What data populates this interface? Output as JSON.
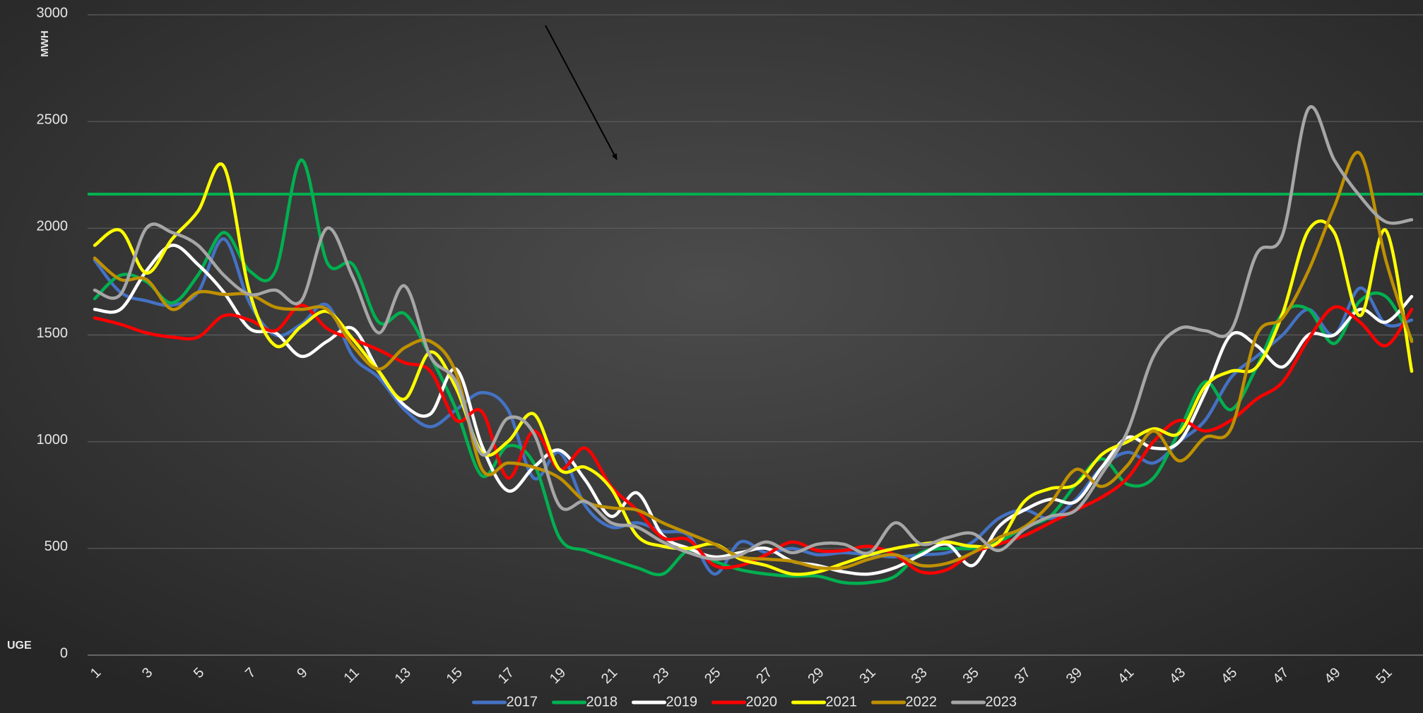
{
  "chart_data": {
    "type": "line",
    "y_label": "MWH",
    "x_label": "UGE",
    "categories": [
      "1",
      null,
      "3",
      null,
      "5",
      null,
      "7",
      null,
      "9",
      null,
      "11",
      null,
      "13",
      null,
      "15",
      null,
      "17",
      null,
      "19",
      null,
      "21",
      null,
      "23",
      null,
      "25",
      null,
      "27",
      null,
      "29",
      null,
      "31",
      null,
      "33",
      null,
      "35",
      null,
      "37",
      null,
      "39",
      null,
      "41",
      null,
      "43",
      null,
      "45",
      null,
      "47",
      null,
      "49",
      null,
      "51",
      null
    ],
    "ylim": [
      0,
      3000
    ],
    "yticks": [
      0,
      500,
      1000,
      1500,
      2000,
      2500,
      3000
    ],
    "grid": true,
    "smooth": true,
    "legend": "bottom",
    "reference_line": {
      "value": 2160,
      "color": "#00b050"
    },
    "series": [
      {
        "name": "2017",
        "color": "#4472c4",
        "values": [
          1850,
          1700,
          1660,
          1640,
          1700,
          1950,
          1650,
          1500,
          1550,
          1640,
          1400,
          1300,
          1150,
          1070,
          1150,
          1230,
          1150,
          830,
          950,
          700,
          600,
          620,
          580,
          560,
          380,
          530,
          480,
          500,
          470,
          480,
          470,
          460,
          470,
          480,
          530,
          640,
          680,
          640,
          730,
          880,
          950,
          900,
          1000,
          1100,
          1300,
          1400,
          1500,
          1620,
          1500,
          1720,
          1550,
          1570
        ]
      },
      {
        "name": "2018",
        "color": "#00b050",
        "values": [
          1670,
          1780,
          1750,
          1650,
          1780,
          1980,
          1800,
          1800,
          2320,
          1840,
          1830,
          1560,
          1600,
          1400,
          1150,
          840,
          980,
          900,
          550,
          490,
          450,
          410,
          380,
          490,
          440,
          400,
          380,
          370,
          370,
          340,
          340,
          370,
          480,
          500,
          500,
          530,
          600,
          650,
          800,
          920,
          800,
          830,
          1050,
          1280,
          1150,
          1350,
          1600,
          1620,
          1460,
          1660,
          1680,
          1480
        ]
      },
      {
        "name": "2019",
        "color": "#ffffff",
        "values": [
          1620,
          1620,
          1800,
          1920,
          1830,
          1700,
          1530,
          1510,
          1400,
          1470,
          1530,
          1330,
          1170,
          1130,
          1340,
          980,
          770,
          880,
          960,
          820,
          650,
          760,
          560,
          500,
          460,
          480,
          500,
          440,
          420,
          390,
          380,
          410,
          470,
          520,
          420,
          600,
          680,
          730,
          720,
          880,
          1020,
          970,
          1000,
          1230,
          1500,
          1450,
          1350,
          1500,
          1500,
          1620,
          1560,
          1680
        ]
      },
      {
        "name": "2020",
        "color": "#ff0000",
        "values": [
          1580,
          1550,
          1510,
          1490,
          1490,
          1590,
          1570,
          1520,
          1640,
          1530,
          1480,
          1430,
          1370,
          1330,
          1100,
          1140,
          830,
          1050,
          870,
          970,
          790,
          680,
          550,
          540,
          420,
          420,
          470,
          530,
          490,
          490,
          510,
          470,
          390,
          400,
          480,
          520,
          560,
          620,
          680,
          740,
          830,
          1000,
          1100,
          1050,
          1100,
          1200,
          1280,
          1480,
          1630,
          1560,
          1450,
          1620
        ]
      },
      {
        "name": "2021",
        "color": "#ffff00",
        "values": [
          1920,
          1990,
          1790,
          1950,
          2080,
          2290,
          1700,
          1450,
          1540,
          1610,
          1480,
          1330,
          1200,
          1420,
          1250,
          950,
          1000,
          1130,
          870,
          880,
          780,
          560,
          510,
          500,
          520,
          450,
          420,
          380,
          390,
          430,
          470,
          500,
          520,
          530,
          510,
          530,
          720,
          780,
          800,
          940,
          1000,
          1060,
          1040,
          1260,
          1330,
          1350,
          1600,
          1990,
          1980,
          1590,
          1990,
          1330
        ]
      },
      {
        "name": "2022",
        "color": "#bf9000",
        "values": [
          1860,
          1760,
          1760,
          1620,
          1700,
          1690,
          1690,
          1630,
          1620,
          1620,
          1450,
          1340,
          1440,
          1470,
          1320,
          870,
          900,
          880,
          830,
          720,
          690,
          680,
          620,
          570,
          520,
          460,
          450,
          440,
          410,
          410,
          450,
          470,
          420,
          430,
          480,
          550,
          600,
          710,
          870,
          790,
          890,
          1050,
          910,
          1020,
          1060,
          1500,
          1580,
          1800,
          2100,
          2350,
          1850,
          1470
        ]
      },
      {
        "name": "2023",
        "color": "#a6a6a6",
        "values": [
          1710,
          1690,
          2000,
          1980,
          1920,
          1780,
          1690,
          1710,
          1660,
          2000,
          1770,
          1510,
          1730,
          1400,
          1280,
          940,
          1110,
          1040,
          700,
          720,
          620,
          600,
          530,
          480,
          450,
          470,
          530,
          480,
          520,
          520,
          480,
          620,
          520,
          550,
          570,
          490,
          590,
          650,
          680,
          850,
          1050,
          1400,
          1530,
          1520,
          1520,
          1880,
          1970,
          2560,
          2320,
          2150,
          2030,
          2040
        ]
      }
    ]
  }
}
